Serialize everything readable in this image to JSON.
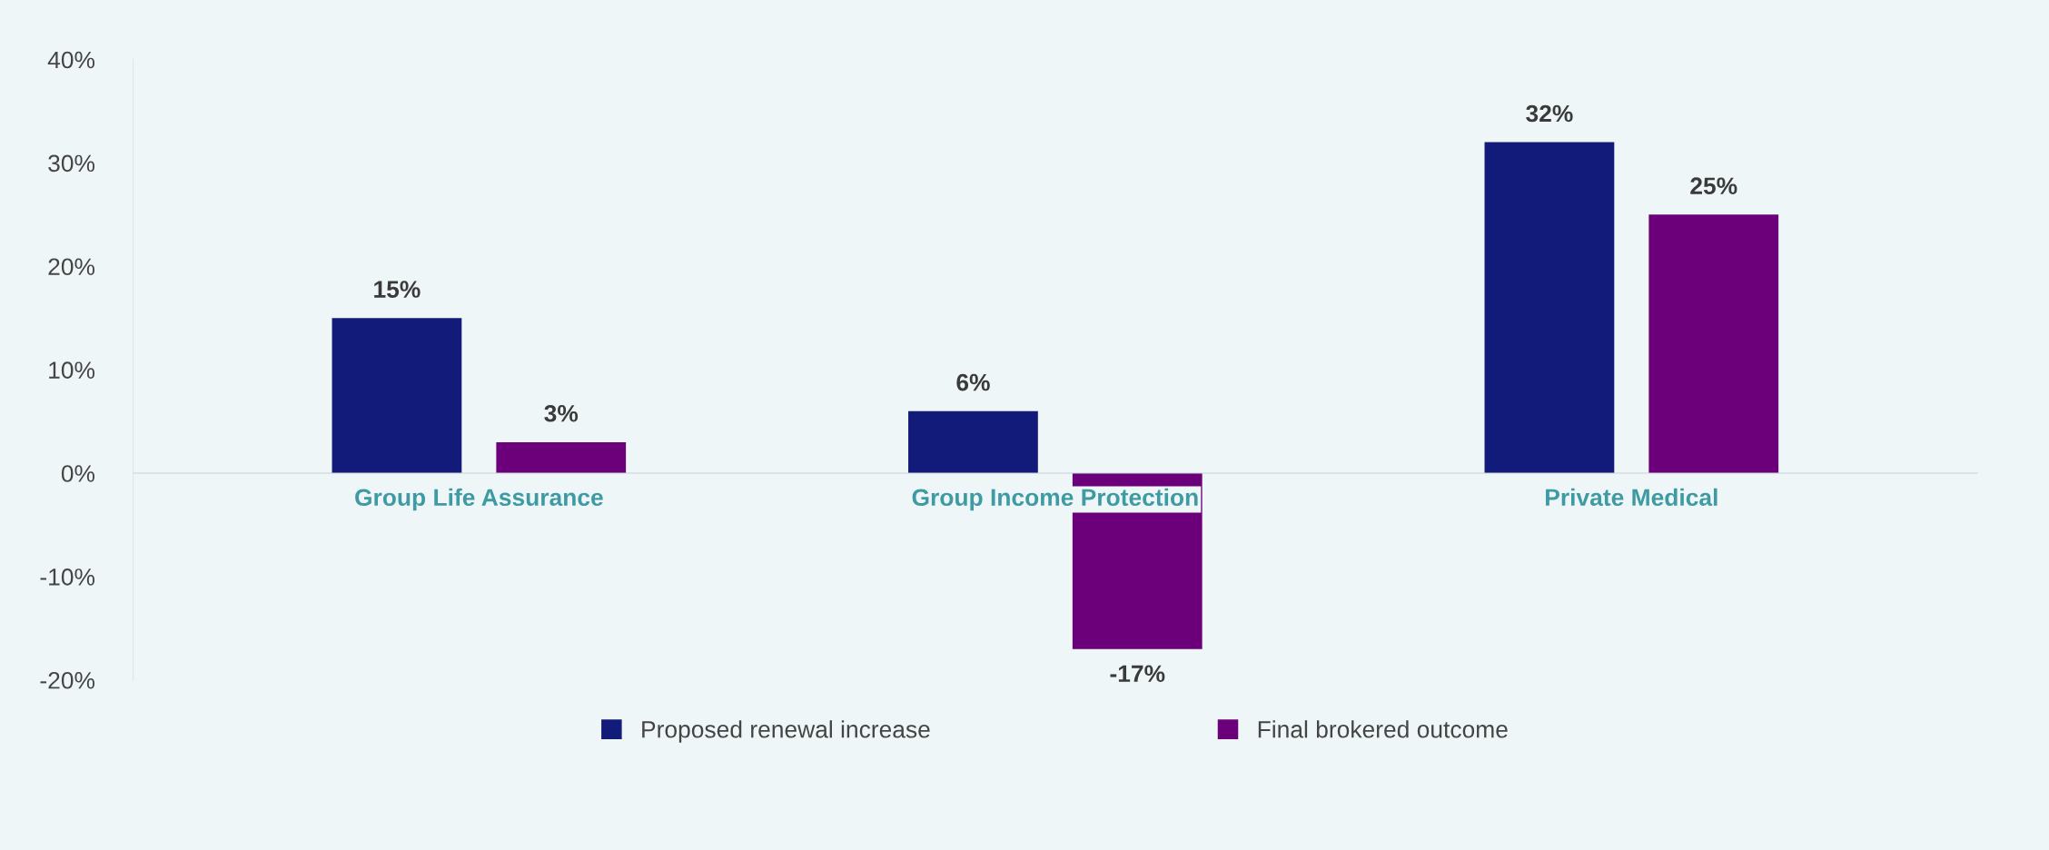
{
  "chart_data": {
    "type": "bar",
    "categories": [
      "Group Life Assurance",
      "Group Income Protection",
      "Private Medical"
    ],
    "series": [
      {
        "name": "Proposed renewal increase",
        "color": "#131b7a",
        "values": [
          15,
          6,
          32
        ]
      },
      {
        "name": "Final brokered outcome",
        "color": "#6b007a",
        "values": [
          3,
          -17,
          25
        ]
      }
    ],
    "ylim": [
      -20,
      40
    ],
    "yticks": [
      {
        "value": -20,
        "label": "-20%"
      },
      {
        "value": -10,
        "label": "-10%"
      },
      {
        "value": 0,
        "label": "0%"
      },
      {
        "value": 10,
        "label": "10%"
      },
      {
        "value": 20,
        "label": "20%"
      },
      {
        "value": 30,
        "label": "30%"
      },
      {
        "value": 40,
        "label": "40%"
      }
    ],
    "value_labels": [
      [
        "15%",
        "6%",
        "32%"
      ],
      [
        "3%",
        "-17%",
        "25%"
      ]
    ],
    "grid": false,
    "legend": "bottom"
  }
}
